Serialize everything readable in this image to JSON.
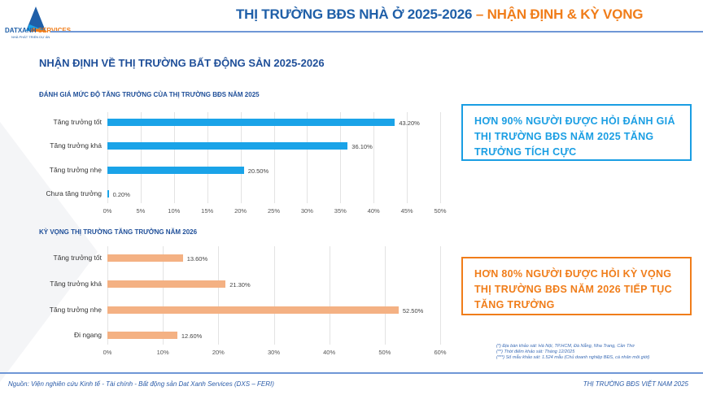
{
  "header": {
    "logo_brand_main": "DATXANH",
    "logo_brand_accent": "SERVICES",
    "logo_tagline": "NHÀ PHÁT TRIỂN DỰ ÁN",
    "title_main": "THỊ TRƯỜNG BĐS NHÀ Ở 2025-2026",
    "title_accent": " – NHẬN ĐỊNH & KỲ VỌNG"
  },
  "subtitle": "NHẬN ĐỊNH VỀ THỊ TRƯỜNG BẤT ĐỘNG SẢN 2025-2026",
  "colors": {
    "primary": "#1f5fa8",
    "accent": "#f07d1a",
    "bar_2025": "#1aa3e8",
    "bar_2026": "#f4b183"
  },
  "chart_data": [
    {
      "type": "bar",
      "orientation": "horizontal",
      "title": "ĐÁNH GIÁ MỨC ĐỘ TĂNG TRƯỞNG CỦA THỊ TRƯỜNG BĐS NĂM 2025",
      "categories": [
        "Tăng trưởng tốt",
        "Tăng trưởng khá",
        "Tăng trưởng nhẹ",
        "Chưa tăng trưởng"
      ],
      "values": [
        43.2,
        36.1,
        20.5,
        0.2
      ],
      "value_labels": [
        "43.20%",
        "36.10%",
        "20.50%",
        "0.20%"
      ],
      "xlim": [
        0,
        50
      ],
      "ticks": [
        "0%",
        "5%",
        "10%",
        "15%",
        "20%",
        "25%",
        "30%",
        "35%",
        "40%",
        "45%",
        "50%"
      ],
      "grid": true,
      "color": "#1aa3e8"
    },
    {
      "type": "bar",
      "orientation": "horizontal",
      "title": "KỲ VỌNG THỊ TRƯỜNG TĂNG TRƯỞNG NĂM 2026",
      "categories": [
        "Tăng trưởng tốt",
        "Tăng trưởng khá",
        "Tăng trưởng nhẹ",
        "Đi ngang"
      ],
      "values": [
        13.6,
        21.3,
        52.5,
        12.6
      ],
      "value_labels": [
        "13.60%",
        "21.30%",
        "52.50%",
        "12.60%"
      ],
      "xlim": [
        0,
        60
      ],
      "ticks": [
        "0%",
        "10%",
        "20%",
        "30%",
        "40%",
        "50%",
        "60%"
      ],
      "grid": true,
      "color": "#f4b183"
    }
  ],
  "callouts": {
    "box_2025": "HƠN 90% NGƯỜI ĐƯỢC HỎI ĐÁNH GIÁ THỊ TRƯỜNG BĐS NĂM 2025 TĂNG TRƯỞNG TÍCH CỰC",
    "box_2026": "HƠN 80% NGƯỜI ĐƯỢC HỎI KỲ VỌNG THỊ TRƯỜNG BĐS NĂM 2026 TIẾP TỤC TĂNG TRƯỞNG"
  },
  "notes": [
    "(*) Địa bàn khảo sát: Hà Nội, TP.HCM, Đà Nẵng, Nha Trang, Cần Thơ",
    "(**) Thời điểm khảo sát: Tháng 12/2025",
    "(***) Số mẫu khảo sát: 1.524 mẫu (Chủ doanh nghiệp BĐS, cá nhân môi giới)"
  ],
  "footer": {
    "source": "Nguồn: Viện nghiên cứu Kinh tế - Tài chính - Bất động sản Dat Xanh Services (DXS – FERI)",
    "right": "THỊ TRƯỜNG BĐS VIỆT NAM 2025"
  }
}
